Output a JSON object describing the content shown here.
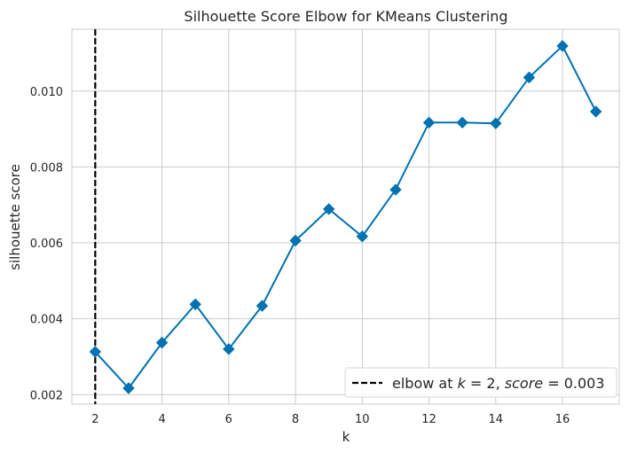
{
  "chart_data": {
    "type": "line",
    "title": "Silhouette Score Elbow for KMeans Clustering",
    "xlabel": "k",
    "ylabel": "silhouette score",
    "x": [
      2,
      3,
      4,
      5,
      6,
      7,
      8,
      9,
      10,
      11,
      12,
      13,
      14,
      15,
      16,
      17
    ],
    "series": [
      {
        "values": [
          0.00313,
          0.00217,
          0.00337,
          0.00438,
          0.0032,
          0.00434,
          0.00606,
          0.00689,
          0.00617,
          0.0074,
          0.00917,
          0.00917,
          0.00915,
          0.01036,
          0.01119,
          0.00946
        ],
        "color": "#0072B2",
        "marker": "diamond"
      }
    ],
    "xticks": [
      "2",
      "4",
      "6",
      "8",
      "10",
      "12",
      "14",
      "16"
    ],
    "yticks": [
      "0.002",
      "0.004",
      "0.006",
      "0.008",
      "0.010"
    ],
    "xlim": [
      1.3,
      17.7
    ],
    "ylim": [
      0.00175,
      0.01163
    ],
    "grid": true,
    "elbow": {
      "k": 2,
      "score": 0.003,
      "color": "#000000",
      "style": "dashed"
    },
    "legend": {
      "placement": "lower-right",
      "prefix": "elbow at ",
      "k_var": "k",
      "k_eq": " = 2, ",
      "score_var": "score",
      "score_eq": " = 0.003"
    }
  }
}
